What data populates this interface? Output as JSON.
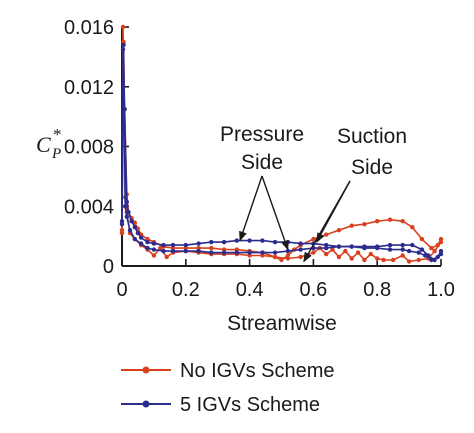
{
  "chart_data": {
    "type": "line",
    "title": "",
    "xlabel": "Streamwise",
    "ylabel_base": "C",
    "ylabel_sub": "P",
    "ylabel_sup": "*",
    "xlim": [
      0,
      1.0
    ],
    "ylim": [
      0,
      0.016
    ],
    "x_ticks": [
      0,
      0.2,
      0.4,
      0.6,
      0.8,
      1.0
    ],
    "x_tick_labels": [
      "0",
      "0.2",
      "0.4",
      "0.6",
      "0.8",
      "1.0"
    ],
    "y_ticks": [
      0,
      0.004,
      0.008,
      0.012,
      0.016
    ],
    "y_tick_labels": [
      "0",
      "0.004",
      "0.008",
      "0.012",
      "0.016"
    ],
    "grid": false,
    "legend_position": "bottom",
    "annotations": [
      {
        "id": "pressure",
        "lines": [
          "Pressure",
          "Side"
        ],
        "arrow_targets": [
          [
            0.37,
            0.0017
          ],
          [
            0.52,
            0.0011
          ]
        ]
      },
      {
        "id": "suction",
        "lines": [
          "Suction",
          "Side"
        ],
        "arrow_targets": [
          [
            0.57,
            0.0003
          ],
          [
            0.61,
            0.0016
          ]
        ]
      }
    ],
    "series": [
      {
        "name": "No IGVs Scheme",
        "color": "#d9411e",
        "marker": "circle",
        "curves": [
          [
            [
              0.0,
              0.0022
            ],
            [
              0.003,
              0.016
            ],
            [
              0.008,
              0.0105
            ],
            [
              0.015,
              0.0048
            ],
            [
              0.02,
              0.0036
            ],
            [
              0.03,
              0.0032
            ],
            [
              0.04,
              0.0029
            ],
            [
              0.05,
              0.0025
            ],
            [
              0.06,
              0.0021
            ],
            [
              0.08,
              0.0018
            ],
            [
              0.1,
              0.0016
            ],
            [
              0.13,
              0.0013
            ],
            [
              0.16,
              0.0012
            ],
            [
              0.2,
              0.0012
            ],
            [
              0.24,
              0.0012
            ],
            [
              0.28,
              0.0012
            ],
            [
              0.32,
              0.0011
            ],
            [
              0.36,
              0.0011
            ],
            [
              0.4,
              0.001
            ],
            [
              0.44,
              0.0009
            ],
            [
              0.48,
              0.0006
            ],
            [
              0.5,
              0.0004
            ],
            [
              0.52,
              0.0007
            ],
            [
              0.54,
              0.0011
            ],
            [
              0.56,
              0.0014
            ],
            [
              0.6,
              0.0018
            ],
            [
              0.64,
              0.0021
            ],
            [
              0.68,
              0.0024
            ],
            [
              0.72,
              0.0027
            ],
            [
              0.76,
              0.0028
            ],
            [
              0.8,
              0.003
            ],
            [
              0.84,
              0.0031
            ],
            [
              0.88,
              0.003
            ],
            [
              0.91,
              0.0026
            ],
            [
              0.94,
              0.0018
            ],
            [
              0.97,
              0.0012
            ],
            [
              0.99,
              0.0014
            ],
            [
              1.0,
              0.0018
            ]
          ],
          [
            [
              0.0,
              0.0024
            ],
            [
              0.005,
              0.015
            ],
            [
              0.01,
              0.0046
            ],
            [
              0.015,
              0.0036
            ],
            [
              0.025,
              0.0022
            ],
            [
              0.04,
              0.0018
            ],
            [
              0.06,
              0.0014
            ],
            [
              0.08,
              0.0011
            ],
            [
              0.1,
              0.0007
            ],
            [
              0.12,
              0.0012
            ],
            [
              0.14,
              0.0006
            ],
            [
              0.16,
              0.0009
            ],
            [
              0.2,
              0.001
            ],
            [
              0.24,
              0.0009
            ],
            [
              0.28,
              0.0008
            ],
            [
              0.32,
              0.0008
            ],
            [
              0.36,
              0.0008
            ],
            [
              0.4,
              0.0007
            ],
            [
              0.44,
              0.0007
            ],
            [
              0.48,
              0.0006
            ],
            [
              0.52,
              0.0005
            ],
            [
              0.56,
              0.0006
            ],
            [
              0.6,
              0.0009
            ],
            [
              0.62,
              0.0012
            ],
            [
              0.64,
              0.0008
            ],
            [
              0.66,
              0.0011
            ],
            [
              0.68,
              0.0006
            ],
            [
              0.7,
              0.001
            ],
            [
              0.72,
              0.0005
            ],
            [
              0.74,
              0.0009
            ],
            [
              0.76,
              0.0004
            ],
            [
              0.78,
              0.0008
            ],
            [
              0.8,
              0.0005
            ],
            [
              0.82,
              0.0004
            ],
            [
              0.85,
              0.0004
            ],
            [
              0.88,
              0.0007
            ],
            [
              0.9,
              0.0003
            ],
            [
              0.93,
              0.0004
            ],
            [
              0.96,
              0.0005
            ],
            [
              0.98,
              0.001
            ],
            [
              1.0,
              0.0016
            ]
          ]
        ]
      },
      {
        "name": "5 IGVs Scheme",
        "color": "#2b2c8f",
        "marker": "circle",
        "curves": [
          [
            [
              0.0,
              0.0028
            ],
            [
              0.003,
              0.0145
            ],
            [
              0.008,
              0.0105
            ],
            [
              0.015,
              0.0043
            ],
            [
              0.02,
              0.0036
            ],
            [
              0.03,
              0.003
            ],
            [
              0.04,
              0.0026
            ],
            [
              0.05,
              0.0022
            ],
            [
              0.06,
              0.0019
            ],
            [
              0.08,
              0.0016
            ],
            [
              0.1,
              0.0015
            ],
            [
              0.13,
              0.0014
            ],
            [
              0.16,
              0.0014
            ],
            [
              0.2,
              0.0014
            ],
            [
              0.24,
              0.0015
            ],
            [
              0.28,
              0.0016
            ],
            [
              0.32,
              0.0016
            ],
            [
              0.36,
              0.0017
            ],
            [
              0.4,
              0.0017
            ],
            [
              0.44,
              0.0017
            ],
            [
              0.48,
              0.0016
            ],
            [
              0.52,
              0.0016
            ],
            [
              0.56,
              0.0015
            ],
            [
              0.6,
              0.0015
            ],
            [
              0.64,
              0.0014
            ],
            [
              0.68,
              0.0013
            ],
            [
              0.72,
              0.0013
            ],
            [
              0.76,
              0.0012
            ],
            [
              0.8,
              0.0012
            ],
            [
              0.84,
              0.0011
            ],
            [
              0.88,
              0.0011
            ],
            [
              0.9,
              0.001
            ],
            [
              0.93,
              0.0009
            ],
            [
              0.95,
              0.0007
            ],
            [
              0.97,
              0.0004
            ],
            [
              0.99,
              0.0006
            ],
            [
              1.0,
              0.001
            ]
          ],
          [
            [
              0.0,
              0.003
            ],
            [
              0.005,
              0.0148
            ],
            [
              0.01,
              0.004
            ],
            [
              0.015,
              0.0033
            ],
            [
              0.025,
              0.0024
            ],
            [
              0.04,
              0.0018
            ],
            [
              0.06,
              0.0015
            ],
            [
              0.08,
              0.0012
            ],
            [
              0.1,
              0.0011
            ],
            [
              0.13,
              0.001
            ],
            [
              0.16,
              0.001
            ],
            [
              0.2,
              0.001
            ],
            [
              0.24,
              0.001
            ],
            [
              0.28,
              0.0009
            ],
            [
              0.32,
              0.0009
            ],
            [
              0.36,
              0.0009
            ],
            [
              0.4,
              0.0009
            ],
            [
              0.44,
              0.0009
            ],
            [
              0.48,
              0.0009
            ],
            [
              0.52,
              0.001
            ],
            [
              0.56,
              0.0011
            ],
            [
              0.6,
              0.0012
            ],
            [
              0.64,
              0.0012
            ],
            [
              0.68,
              0.0013
            ],
            [
              0.72,
              0.0013
            ],
            [
              0.76,
              0.0013
            ],
            [
              0.8,
              0.0013
            ],
            [
              0.84,
              0.0014
            ],
            [
              0.88,
              0.0014
            ],
            [
              0.91,
              0.0014
            ],
            [
              0.94,
              0.0011
            ],
            [
              0.96,
              0.0007
            ],
            [
              0.98,
              0.0004
            ],
            [
              1.0,
              0.0008
            ]
          ]
        ]
      }
    ]
  }
}
